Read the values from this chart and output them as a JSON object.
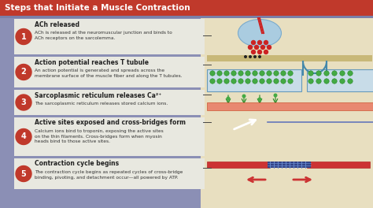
{
  "title": "Steps that Initiate a Muscle Contraction",
  "title_bg": "#c0392b",
  "title_text_color": "#ffffff",
  "background_color": "#8b8fb5",
  "step_bg": "#e8e8e0",
  "step_number_bg": "#c0392b",
  "step_number_color": "#ffffff",
  "right_panel_bg": "#e8dfc0",
  "steps": [
    {
      "number": "1",
      "title": "ACh released",
      "body": "ACh is released at the neuromuscular junction and binds to\nACh receptors on the sarcolemma."
    },
    {
      "number": "2",
      "title": "Action potential reaches T tubule",
      "body": "An action potential is generated and spreads across the\nmembrane surface of the muscle fiber and along the T tubules."
    },
    {
      "number": "3",
      "title": "Sarcoplasmic reticulum releases Ca²⁺",
      "body": "The sarcoplasmic reticulum releases stored calcium ions."
    },
    {
      "number": "4",
      "title": "Active sites exposed and cross-bridges form",
      "body": "Calcium ions bind to troponin, exposing the active sites\non the thin filaments. Cross-bridges form when myosin\nheads bind to those active sites."
    },
    {
      "number": "5",
      "title": "Contraction cycle begins",
      "body": "The contraction cycle begins as repeated cycles of cross-bridge\nbinding, pivoting, and detachment occur—all powered by ATP."
    }
  ]
}
